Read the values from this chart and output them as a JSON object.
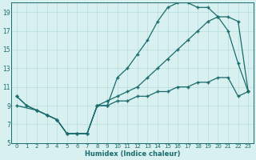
{
  "xlabel": "Humidex (Indice chaleur)",
  "bg_color": "#d8f0f0",
  "grid_color": "#b8dcdc",
  "line_color": "#1a6b6b",
  "xlim": [
    -0.5,
    23.5
  ],
  "ylim": [
    5,
    20
  ],
  "yticks": [
    5,
    7,
    9,
    11,
    13,
    15,
    17,
    19
  ],
  "xticks": [
    0,
    1,
    2,
    3,
    4,
    5,
    6,
    7,
    8,
    9,
    10,
    11,
    12,
    13,
    14,
    15,
    16,
    17,
    18,
    19,
    20,
    21,
    22,
    23
  ],
  "line1_x": [
    0,
    1,
    2,
    3,
    4,
    5,
    6,
    7,
    8,
    9,
    10,
    11,
    12,
    13,
    14,
    15,
    16,
    17,
    18,
    19,
    20,
    21,
    22,
    23
  ],
  "line1_y": [
    10,
    9,
    8.5,
    8,
    7.5,
    6,
    6,
    6,
    9,
    9,
    12,
    13,
    14.5,
    16,
    18,
    19.5,
    20,
    20,
    19.5,
    19.5,
    18.5,
    17,
    13.5,
    10.5
  ],
  "line2_x": [
    0,
    1,
    2,
    3,
    4,
    5,
    6,
    7,
    8,
    9,
    10,
    11,
    12,
    13,
    14,
    15,
    16,
    17,
    18,
    19,
    20,
    21,
    22,
    23
  ],
  "line2_y": [
    10,
    9,
    8.5,
    8,
    7.5,
    6,
    6,
    6,
    9,
    9.5,
    10,
    10.5,
    11,
    12,
    13,
    14,
    15,
    16,
    17,
    18,
    18.5,
    18.5,
    18,
    10.5
  ],
  "line3_x": [
    0,
    2,
    3,
    4,
    5,
    6,
    7,
    8,
    9,
    10,
    11,
    12,
    13,
    14,
    15,
    16,
    17,
    18,
    19,
    20,
    21,
    22,
    23
  ],
  "line3_y": [
    9,
    8.5,
    8,
    7.5,
    6,
    6,
    6,
    9,
    9,
    9.5,
    9.5,
    10,
    10,
    10.5,
    10.5,
    11,
    11,
    11.5,
    11.5,
    12,
    12,
    10,
    10.5
  ]
}
